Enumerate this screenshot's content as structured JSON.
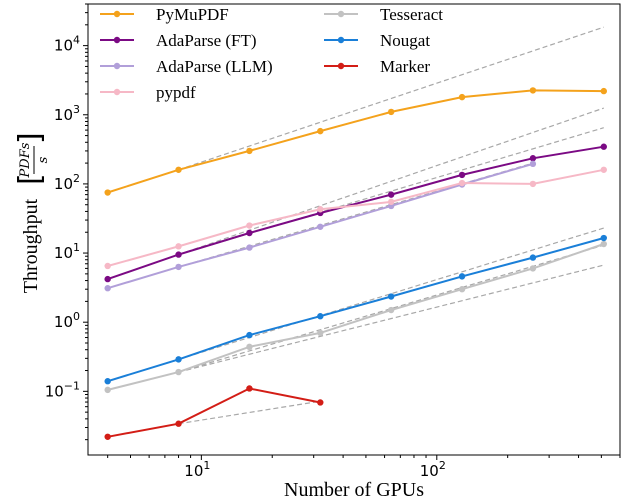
{
  "chart_data": {
    "type": "line",
    "xlabel": "Number of GPUs",
    "ylabel": "Throughput",
    "ylabel_fraction": {
      "numerator": "PDFs",
      "denominator": "s"
    },
    "xscale": "log",
    "yscale": "log",
    "xlim": [
      3.3,
      600
    ],
    "ylim": [
      0.012,
      40000
    ],
    "x_ticks": [
      {
        "value": 10,
        "base": "10",
        "exp": "1"
      },
      {
        "value": 100,
        "base": "10",
        "exp": "2"
      }
    ],
    "y_ticks": [
      {
        "value": 0.1,
        "base": "10",
        "exp": "−1"
      },
      {
        "value": 1,
        "base": "10",
        "exp": "0"
      },
      {
        "value": 10,
        "base": "10",
        "exp": "1"
      },
      {
        "value": 100,
        "base": "10",
        "exp": "2"
      },
      {
        "value": 1000,
        "base": "10",
        "exp": "3"
      },
      {
        "value": 10000,
        "base": "10",
        "exp": "4"
      }
    ],
    "legend_position": "top-left",
    "grid": false,
    "series": [
      {
        "name": "PyMuPDF",
        "color": "#f4a21c",
        "x": [
          4,
          8,
          16,
          32,
          64,
          128,
          256,
          512
        ],
        "y": [
          75,
          160,
          300,
          580,
          1100,
          1800,
          2250,
          2200
        ]
      },
      {
        "name": "AdaParse (FT)",
        "color": "#7b0a84",
        "x": [
          4,
          8,
          16,
          32,
          64,
          128,
          256,
          512
        ],
        "y": [
          4.2,
          9.5,
          19.5,
          38,
          70,
          135,
          235,
          345
        ]
      },
      {
        "name": "AdaParse (LLM)",
        "color": "#b19fd9",
        "x": [
          4,
          8,
          16,
          32,
          64,
          128,
          256
        ],
        "y": [
          3.1,
          6.3,
          12,
          24,
          48,
          98,
          195
        ]
      },
      {
        "name": "pypdf",
        "color": "#f6b8c6",
        "x": [
          4,
          8,
          16,
          32,
          64,
          128,
          256,
          512
        ],
        "y": [
          6.5,
          12.5,
          25,
          43,
          55,
          103,
          100,
          160
        ]
      },
      {
        "name": "Tesseract",
        "color": "#c2c2c2",
        "x": [
          4,
          8,
          16,
          32,
          64,
          128,
          256,
          512
        ],
        "y": [
          0.105,
          0.19,
          0.44,
          0.7,
          1.5,
          3.0,
          6.0,
          13.5
        ]
      },
      {
        "name": "Nougat",
        "color": "#1a7fd8",
        "x": [
          4,
          8,
          16,
          32,
          64,
          128,
          256,
          512
        ],
        "y": [
          0.14,
          0.29,
          0.65,
          1.22,
          2.35,
          4.6,
          8.6,
          16.5
        ]
      },
      {
        "name": "Marker",
        "color": "#d31d16",
        "x": [
          4,
          8,
          16,
          32
        ],
        "y": [
          0.022,
          0.034,
          0.11,
          0.069
        ]
      }
    ],
    "reference_lines": [
      {
        "color": "#a8a8a8",
        "x": [
          8,
          512
        ],
        "y": [
          160,
          18500
        ]
      },
      {
        "color": "#a8a8a8",
        "x": [
          8,
          512
        ],
        "y": [
          9.5,
          1250
        ]
      },
      {
        "color": "#a8a8a8",
        "x": [
          8,
          512
        ],
        "y": [
          9.5,
          650
        ]
      },
      {
        "color": "#a8a8a8",
        "x": [
          8,
          256
        ],
        "y": [
          6.3,
          200
        ]
      },
      {
        "color": "#a8a8a8",
        "x": [
          8,
          512
        ],
        "y": [
          0.29,
          23
        ]
      },
      {
        "color": "#a8a8a8",
        "x": [
          8,
          512
        ],
        "y": [
          0.19,
          13
        ]
      },
      {
        "color": "#a8a8a8",
        "x": [
          8,
          512
        ],
        "y": [
          0.19,
          6.7
        ]
      },
      {
        "color": "#a8a8a8",
        "x": [
          8,
          32
        ],
        "y": [
          0.034,
          0.072
        ]
      }
    ]
  }
}
